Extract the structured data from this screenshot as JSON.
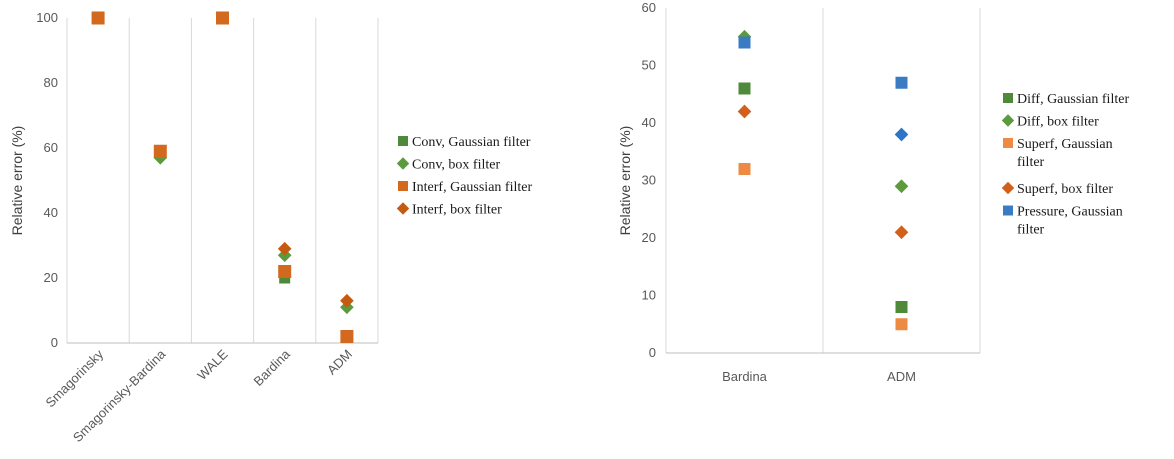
{
  "chart_data": [
    {
      "type": "scatter",
      "title": "",
      "xlabel": "",
      "ylabel": "Relative error (%)",
      "categories": [
        "Smagorinsky",
        "Smagorinsky-Bardina",
        "WALE",
        "Bardina",
        "ADM"
      ],
      "ylim": [
        0,
        100
      ],
      "yticks": [
        0,
        20,
        40,
        60,
        80,
        100
      ],
      "grid": "vertical category separators",
      "legend_position": "right",
      "series": [
        {
          "name": "Conv, Gaussian filter",
          "marker": "square",
          "color": "#4E8A3A",
          "values": [
            null,
            null,
            null,
            20,
            null
          ]
        },
        {
          "name": "Conv, box filter",
          "marker": "diamond",
          "color": "#5B9A3D",
          "values": [
            null,
            57,
            null,
            27,
            11
          ]
        },
        {
          "name": "Interf, Gaussian filter",
          "marker": "square",
          "color": "#D2691E",
          "values": [
            100,
            59,
            100,
            22,
            2
          ]
        },
        {
          "name": "Interf, box filter",
          "marker": "diamond",
          "color": "#C55A11",
          "values": [
            null,
            null,
            null,
            29,
            13
          ]
        }
      ]
    },
    {
      "type": "scatter",
      "title": "",
      "xlabel": "",
      "ylabel": "Relative error (%)",
      "categories": [
        "Bardina",
        "ADM"
      ],
      "ylim": [
        0,
        60
      ],
      "yticks": [
        0,
        10,
        20,
        30,
        40,
        50,
        60
      ],
      "grid": "vertical category separators",
      "legend_position": "right",
      "series": [
        {
          "name": "Diff, Gaussian filter",
          "marker": "square",
          "color": "#4E8A3A",
          "values": [
            46,
            8
          ]
        },
        {
          "name": "Diff, box filter",
          "marker": "diamond",
          "color": "#5B9A3D",
          "values": [
            55,
            29
          ]
        },
        {
          "name": "Superf, Gaussian filter",
          "marker": "square",
          "color": "#ED8B45",
          "values": [
            32,
            5
          ]
        },
        {
          "name": "Superf, box filter",
          "marker": "diamond",
          "color": "#D2601A",
          "values": [
            42,
            21
          ]
        },
        {
          "name": "Pressure, Gaussian filter",
          "marker": "square",
          "color": "#3B7BC4",
          "values": [
            54,
            47
          ]
        },
        {
          "name": "Pressure, box filter",
          "marker": "diamond",
          "color": "#2E75C7",
          "values": [
            null,
            38
          ],
          "in_legend": false
        }
      ]
    }
  ]
}
